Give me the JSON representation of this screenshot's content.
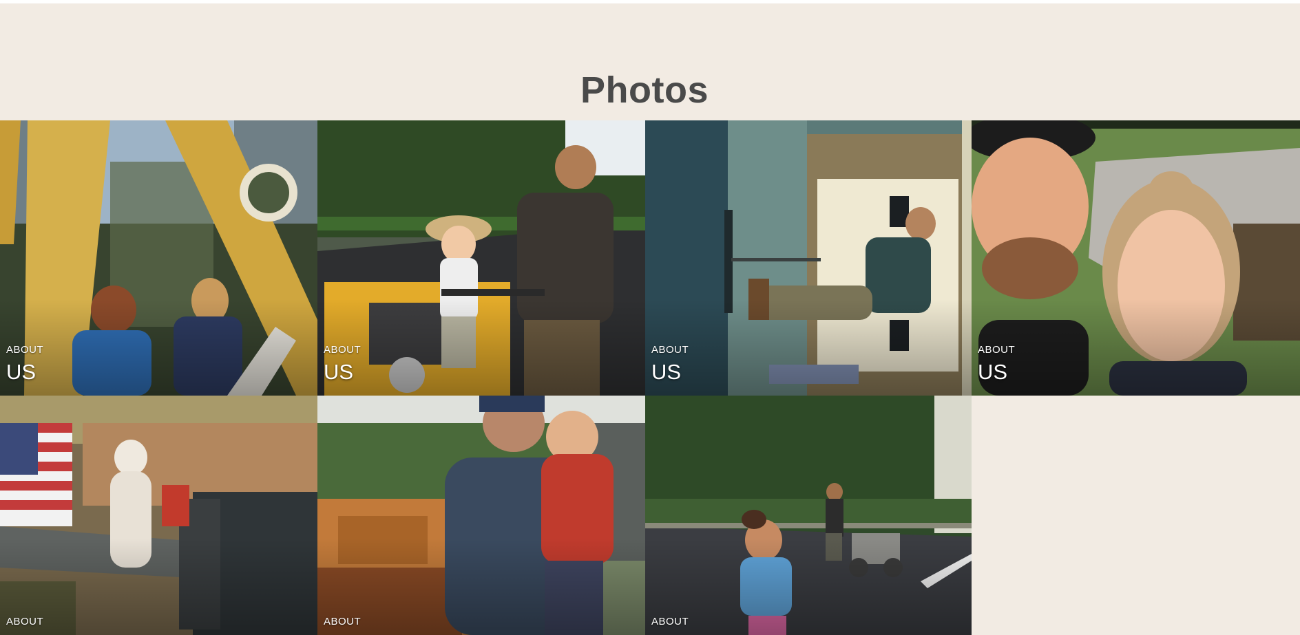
{
  "header": {
    "title": "Photos"
  },
  "gallery": {
    "tiles": [
      {
        "label_small": "ABOUT",
        "label_big": "US",
        "scene": "two children in front of a yellow excavator"
      },
      {
        "label_small": "ABOUT",
        "label_big": "US",
        "scene": "man and toddler on a yellow roller"
      },
      {
        "label_small": "ABOUT",
        "label_big": "US",
        "scene": "worker raking sealcoat beside a garage"
      },
      {
        "label_small": "ABOUT",
        "label_big": "US",
        "scene": "smiling couple selfie outdoors"
      },
      {
        "label_small": "ABOUT",
        "scene": "white dog on a truck tailgate with flag"
      },
      {
        "label_small": "ABOUT",
        "scene": "man holding a child near machinery"
      },
      {
        "label_small": "ABOUT",
        "scene": "girl on a driveway with line striper"
      }
    ]
  },
  "colors": {
    "background": "#f2ebe3",
    "title": "#4a4a4a",
    "caption": "#ffffff"
  }
}
